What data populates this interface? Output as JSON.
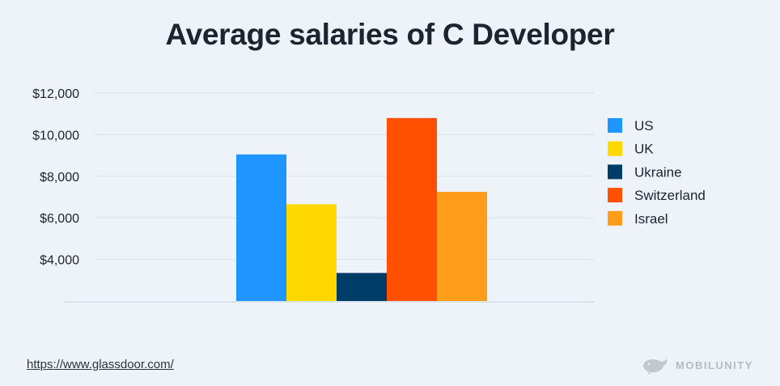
{
  "colors": {
    "background": "#edf3f9",
    "grid": "#d9e1ea",
    "axis_text": "#1c2430"
  },
  "chart_data": {
    "type": "bar",
    "title": "Average salaries of C Developer",
    "categories": [
      "US",
      "UK",
      "Ukraine",
      "Switzerland",
      "Israel"
    ],
    "values": [
      9050,
      6650,
      3350,
      10800,
      7250
    ],
    "colors": [
      "#1f95ff",
      "#ffd800",
      "#003d66",
      "#ff5000",
      "#ff9c1a"
    ],
    "yticks": [
      "$12,000",
      "$10,000",
      "$8,000",
      "$6,000",
      "$4,000"
    ],
    "ytick_values": [
      12000,
      10000,
      8000,
      6000,
      4000
    ],
    "ylim": [
      2000,
      12000
    ],
    "grid": true,
    "legend_position": "right",
    "xlabel": "",
    "ylabel": ""
  },
  "footer": {
    "source": "https://www.glassdoor.com/",
    "brand": "MOBILUNITY",
    "brand_icon": "whale-logo-icon"
  }
}
